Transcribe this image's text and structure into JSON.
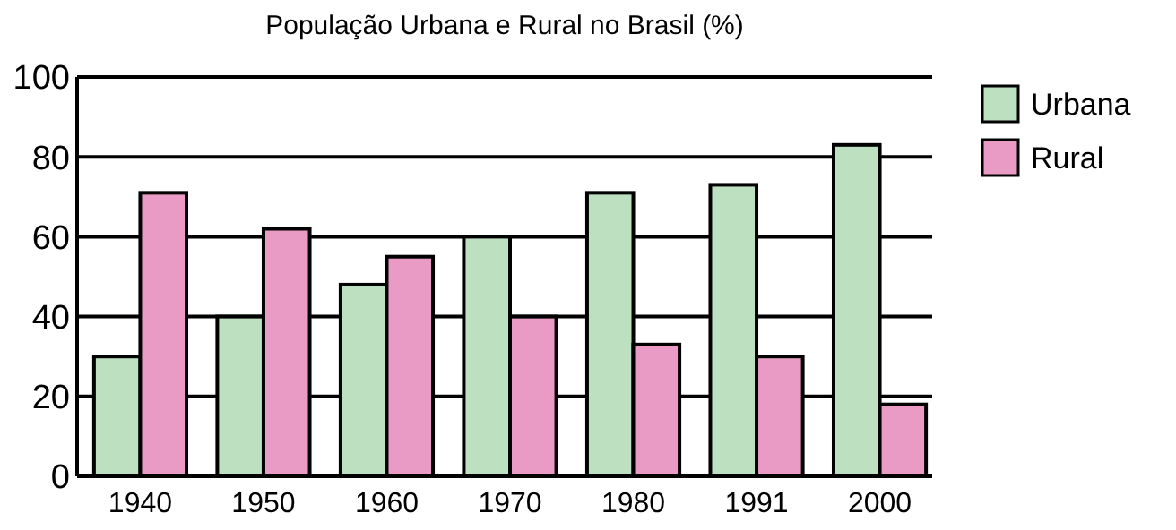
{
  "chart_data": {
    "type": "bar",
    "title": "População Urbana e Rural no Brasil (%)",
    "categories": [
      "1940",
      "1950",
      "1960",
      "1970",
      "1980",
      "1991",
      "2000"
    ],
    "series": [
      {
        "name": "Urbana",
        "color": "#bde0c0",
        "values": [
          30,
          40,
          48,
          60,
          71,
          73,
          83
        ]
      },
      {
        "name": "Rural",
        "color": "#e99bc5",
        "values": [
          71,
          62,
          55,
          40,
          33,
          30,
          18
        ]
      }
    ],
    "ylim": [
      0,
      100
    ],
    "yticks": [
      0,
      20,
      40,
      60,
      80,
      100
    ],
    "grid": "y",
    "legend": "top right"
  }
}
